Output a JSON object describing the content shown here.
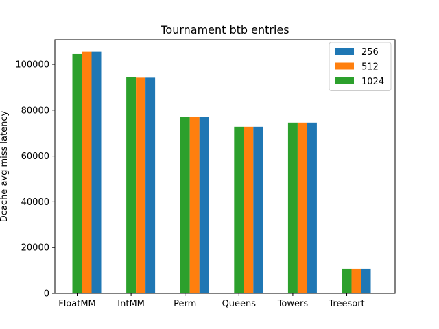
{
  "chart_data": {
    "type": "bar",
    "title": "Tournament btb entries",
    "xlabel": "",
    "ylabel": "Dcache avg miss latency",
    "categories": [
      "FloatMM",
      "IntMM",
      "Perm",
      "Queens",
      "Towers",
      "Treesort"
    ],
    "series": [
      {
        "name": "256",
        "color": "#1f77b4",
        "values": [
          105500,
          94200,
          77000,
          72800,
          74600,
          10800
        ]
      },
      {
        "name": "512",
        "color": "#ff7f0e",
        "values": [
          105500,
          94200,
          77000,
          72800,
          74600,
          10800
        ]
      },
      {
        "name": "1024",
        "color": "#2ca02c",
        "values": [
          104500,
          94400,
          77000,
          72800,
          74600,
          10800
        ]
      }
    ],
    "draw_order": [
      2,
      1,
      0
    ],
    "ylim": [
      0,
      110775
    ],
    "yticks": [
      0,
      20000,
      40000,
      60000,
      80000,
      100000
    ],
    "ytick_labels": [
      "0",
      "20000",
      "40000",
      "60000",
      "80000",
      "100000"
    ],
    "grid": false,
    "legend_placement": "top-right"
  }
}
